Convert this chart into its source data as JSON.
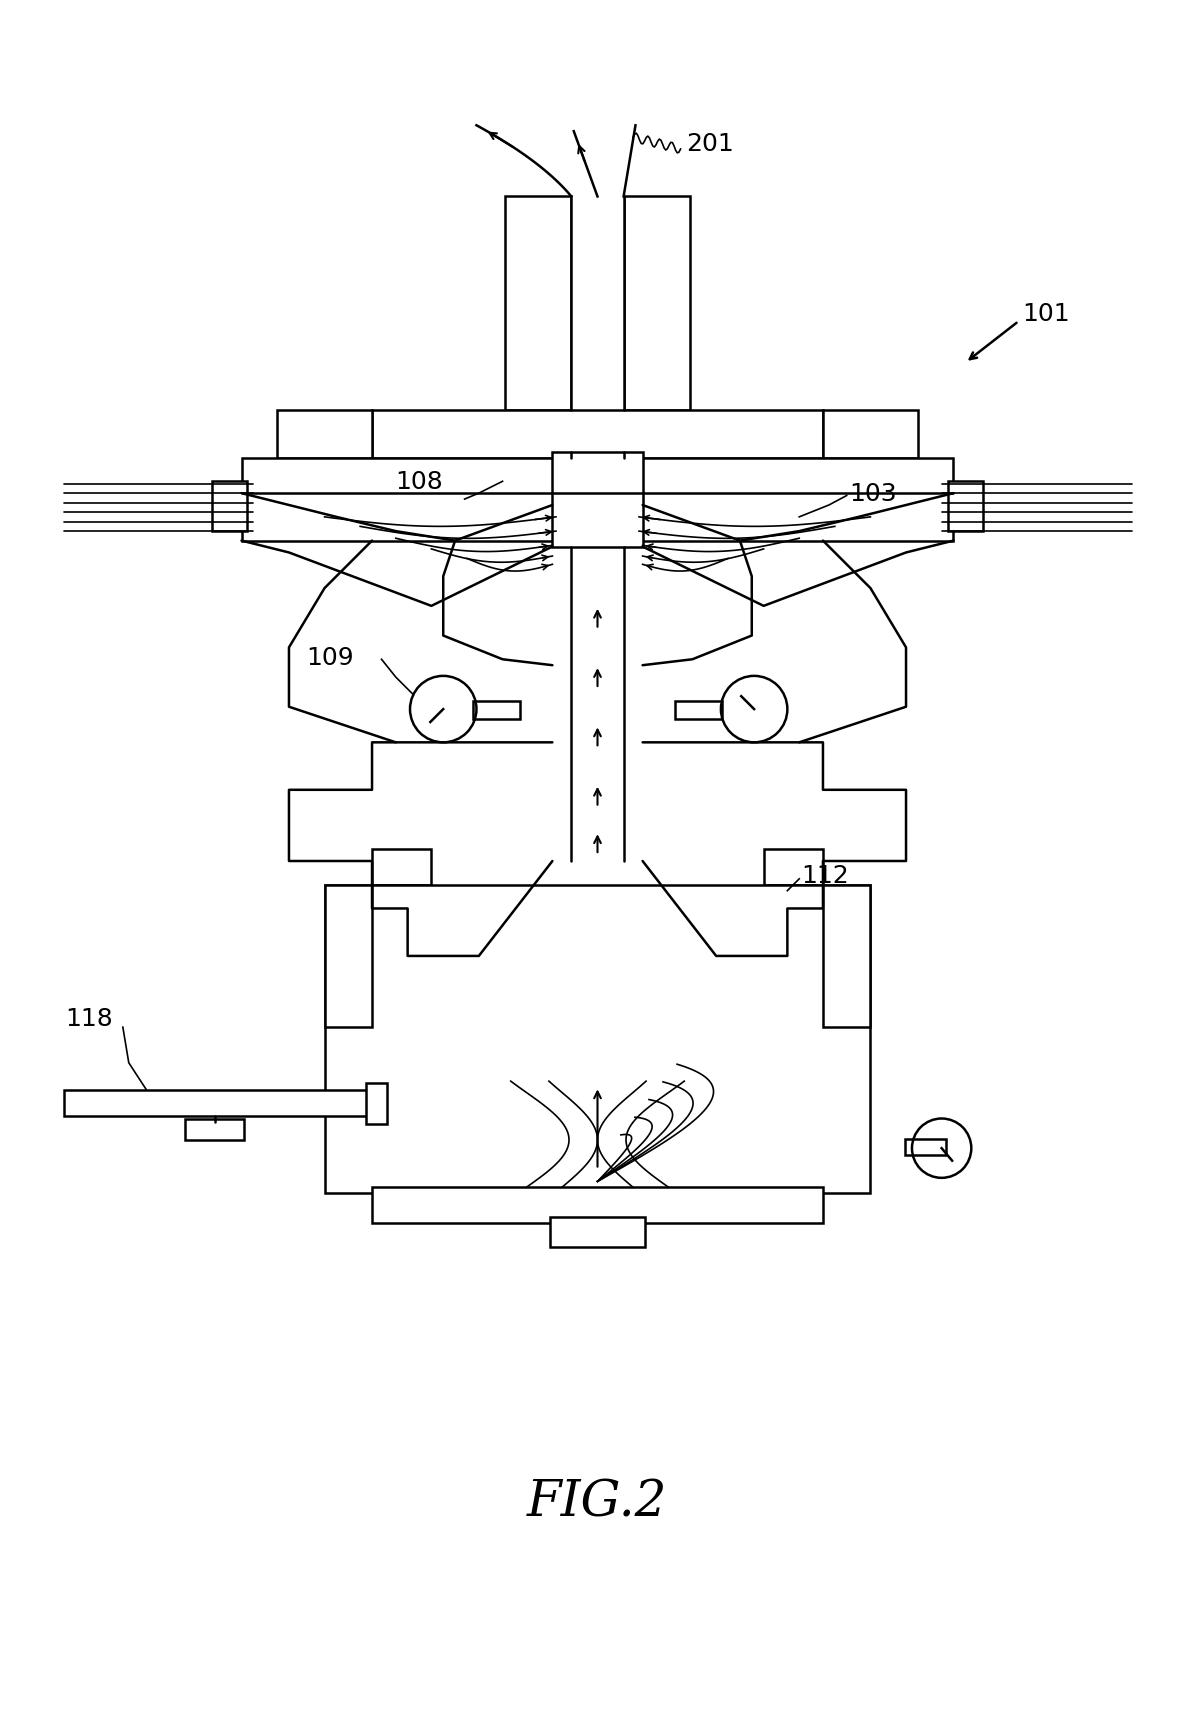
{
  "title": "FIG.2",
  "title_fontsize": 36,
  "bg_color": "#ffffff",
  "lw": 1.8,
  "lw_thin": 1.2,
  "lw_thick": 2.2
}
